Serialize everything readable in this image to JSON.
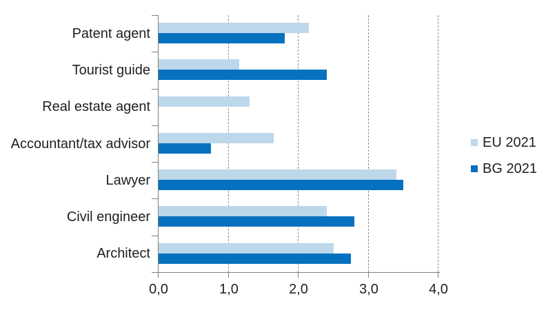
{
  "chart_data": {
    "type": "bar",
    "orientation": "horizontal",
    "title": "",
    "categories": [
      "Patent agent",
      "Tourist guide",
      "Real estate agent",
      "Accountant/tax advisor",
      "Lawyer",
      "Civil engineer",
      "Architect"
    ],
    "series": [
      {
        "name": "EU 2021",
        "color": "#BDD7EB",
        "values": [
          2.15,
          1.15,
          1.3,
          1.65,
          3.4,
          2.4,
          2.5
        ]
      },
      {
        "name": "BG 2021",
        "color": "#0571BF",
        "values": [
          1.8,
          2.4,
          0,
          0.75,
          3.5,
          2.8,
          2.75
        ]
      }
    ],
    "xlim": [
      0,
      4
    ],
    "x_tick_values": [
      0,
      1,
      2,
      3,
      4
    ],
    "x_tick_labels": [
      "0,0",
      "1,0",
      "2,0",
      "3,0",
      "4,0"
    ],
    "grid": "vertical-dashed",
    "legend_position": "right"
  },
  "colors": {
    "axis": "#7f7f7f",
    "gridline": "#8c8c8c",
    "text": "#1f1f1f",
    "background": "#ffffff",
    "eu_series": "#BDD7EB",
    "bg_series": "#0571BF"
  }
}
